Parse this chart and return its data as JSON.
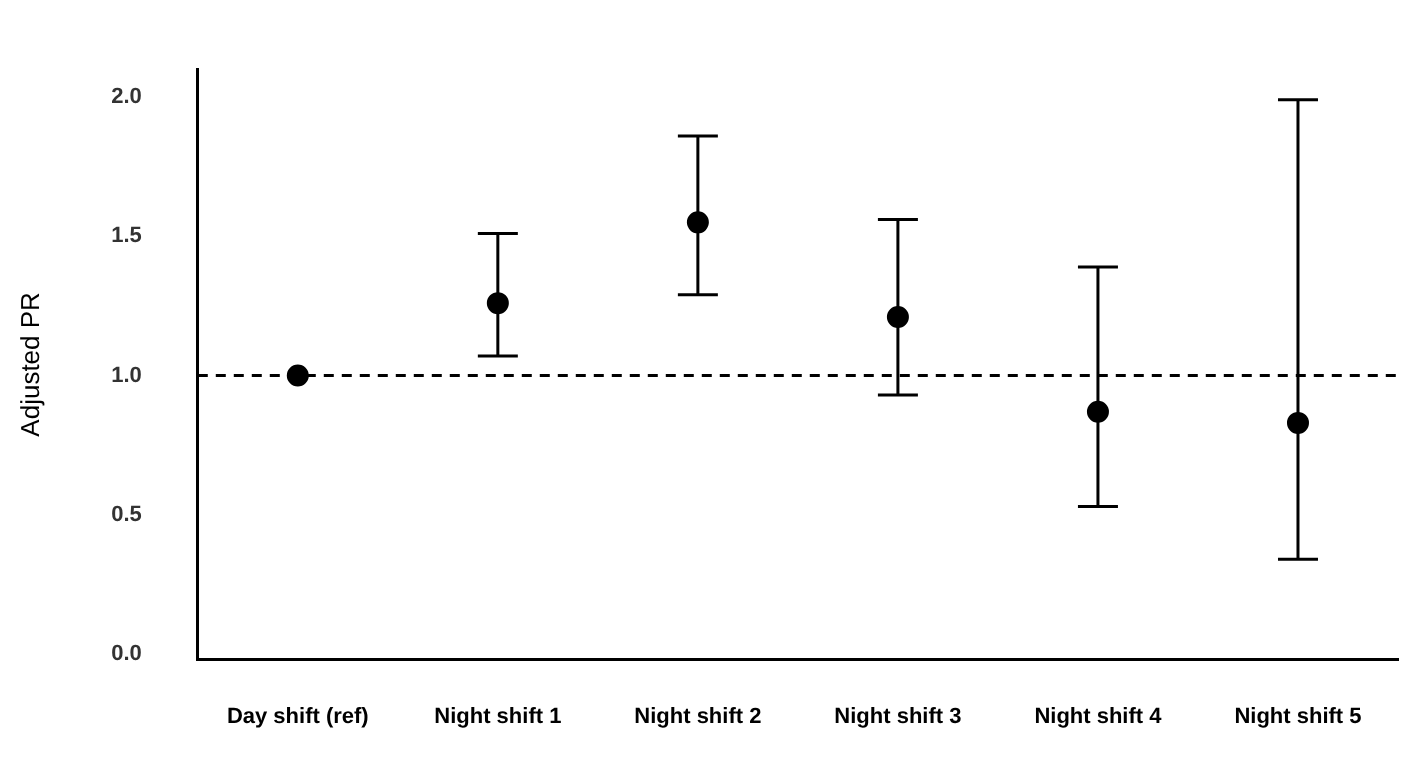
{
  "chart_data": {
    "type": "scatter",
    "ylabel": "Adjusted PR",
    "categories": [
      "Day shift (ref)",
      "Night shift 1",
      "Night shift 2",
      "Night shift 3",
      "Night shift 4",
      "Night shift 5"
    ],
    "values": [
      1.0,
      1.26,
      1.55,
      1.21,
      0.87,
      0.83
    ],
    "errors": [
      null,
      [
        1.07,
        1.51
      ],
      [
        1.29,
        1.86
      ],
      [
        0.93,
        1.56
      ],
      [
        0.53,
        1.39
      ],
      [
        0.34,
        1.99
      ]
    ],
    "color": "#000000",
    "marker": "circle",
    "ylim": [
      -0.02,
      2.1
    ],
    "yticks": [
      {
        "value": 0,
        "label": "0.0"
      },
      {
        "value": 0.5,
        "label": "0.5"
      },
      {
        "value": 1,
        "label": "1.0"
      },
      {
        "value": 1.5,
        "label": "1.5"
      },
      {
        "value": 2,
        "label": "2.0"
      }
    ],
    "grid": false,
    "legend": false,
    "ref_lines": [
      {
        "axis": "y",
        "value": 1,
        "line_style": "dashed",
        "color": "#000000"
      }
    ]
  }
}
